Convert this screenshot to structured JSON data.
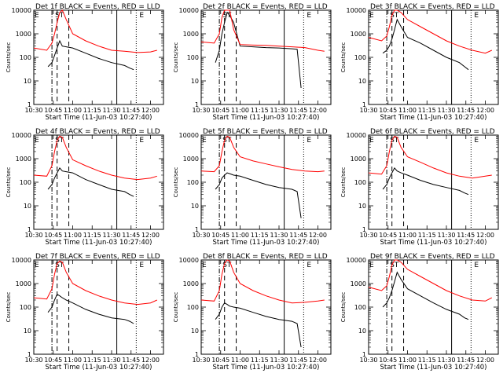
{
  "figure": {
    "start_time_label": "Start Time (11-Jun-03 10:27:40)",
    "y_axis_label": "Counts/sec",
    "x_ticks": [
      "10:30",
      "10:45",
      "11:00",
      "11:15",
      "11:30",
      "11:45",
      "12:00"
    ],
    "y_ticks": [
      "1",
      "10",
      "100",
      "1000",
      "10000"
    ],
    "interval_markers": [
      "S",
      "T",
      "E"
    ],
    "colors": {
      "events": "#000000",
      "lld": "#ff0000"
    }
  },
  "chart_data": [
    {
      "type": "line",
      "title": "Det 1f BLACK = Events, RED = LLD",
      "xlabel": "Start Time (11-Jun-03 10:27:40)",
      "ylabel": "Counts/sec",
      "x_time_range": [
        "10:30",
        "12:10"
      ],
      "ylim": [
        1,
        10000
      ],
      "y_scale": "log",
      "series": [
        {
          "name": "Events",
          "color": "#000000",
          "t": [
            "10:41",
            "10:44",
            "10:46",
            "10:48",
            "10:50",
            "10:52",
            "10:55",
            "11:00",
            "11:10",
            "11:20",
            "11:30",
            "11:40",
            "11:44",
            "11:47"
          ],
          "values": [
            40,
            60,
            120,
            250,
            500,
            300,
            280,
            250,
            150,
            90,
            60,
            45,
            35,
            30
          ]
        },
        {
          "name": "LLD",
          "color": "#ff0000",
          "t": [
            "10:30",
            "10:40",
            "10:44",
            "10:46",
            "10:48",
            "10:50",
            "10:52",
            "10:55",
            "11:00",
            "11:10",
            "11:20",
            "11:30",
            "11:40",
            "11:50",
            "12:00",
            "12:05"
          ],
          "values": [
            250,
            200,
            400,
            1000,
            3000,
            8000,
            10000,
            4000,
            1000,
            500,
            300,
            200,
            180,
            160,
            170,
            200
          ]
        }
      ],
      "markers": {
        "dash_dot": "10:44",
        "dashed_1": "10:48",
        "dashed_2": "10:57",
        "solid": "11:34",
        "dotted": "11:49"
      }
    },
    {
      "type": "line",
      "title": "Det 2f BLACK = Events, RED = LLD",
      "xlabel": "Start Time (11-Jun-03 10:27:40)",
      "ylabel": "Counts/sec",
      "x_time_range": [
        "10:30",
        "12:10"
      ],
      "ylim": [
        1,
        10000
      ],
      "y_scale": "log",
      "series": [
        {
          "name": "Events",
          "color": "#000000",
          "t": [
            "10:41",
            "10:44",
            "10:46",
            "10:48",
            "10:50",
            "10:52",
            "10:55",
            "11:00",
            "11:10",
            "11:20",
            "11:30",
            "11:40",
            "11:44",
            "11:47"
          ],
          "values": [
            60,
            200,
            1000,
            3000,
            8000,
            6000,
            3000,
            300,
            280,
            260,
            250,
            230,
            220,
            5
          ]
        },
        {
          "name": "LLD",
          "color": "#ff0000",
          "t": [
            "10:30",
            "10:40",
            "10:44",
            "10:46",
            "10:48",
            "10:50",
            "10:52",
            "10:55",
            "11:00",
            "11:10",
            "11:20",
            "11:30",
            "11:40",
            "11:50",
            "12:00",
            "12:05"
          ],
          "values": [
            450,
            400,
            1000,
            5000,
            10000,
            10000,
            10000,
            1500,
            350,
            330,
            320,
            300,
            280,
            260,
            200,
            180
          ]
        }
      ],
      "markers": {
        "dash_dot": "10:44",
        "dashed_1": "10:48",
        "dashed_2": "10:57",
        "solid": "11:34",
        "dotted": "11:49"
      }
    },
    {
      "type": "line",
      "title": "Det 3f BLACK = Events, RED = LLD",
      "xlabel": "Start Time (11-Jun-03 10:27:40)",
      "ylabel": "Counts/sec",
      "x_time_range": [
        "10:30",
        "12:10"
      ],
      "ylim": [
        1,
        10000
      ],
      "y_scale": "log",
      "series": [
        {
          "name": "Events",
          "color": "#000000",
          "t": [
            "10:41",
            "10:44",
            "10:46",
            "10:48",
            "10:50",
            "10:52",
            "10:55",
            "11:00",
            "11:10",
            "11:20",
            "11:30",
            "11:40",
            "11:44",
            "11:47"
          ],
          "values": [
            150,
            200,
            300,
            600,
            1500,
            4000,
            2000,
            700,
            400,
            200,
            100,
            60,
            40,
            30
          ]
        },
        {
          "name": "LLD",
          "color": "#ff0000",
          "t": [
            "10:30",
            "10:40",
            "10:44",
            "10:46",
            "10:48",
            "10:50",
            "10:52",
            "10:55",
            "11:00",
            "11:10",
            "11:20",
            "11:30",
            "11:40",
            "11:50",
            "12:00",
            "12:05"
          ],
          "values": [
            700,
            500,
            800,
            2000,
            6000,
            10000,
            10000,
            8000,
            4000,
            2000,
            1000,
            500,
            300,
            200,
            150,
            200
          ]
        }
      ],
      "markers": {
        "dash_dot": "10:44",
        "dashed_1": "10:48",
        "dashed_2": "10:57",
        "solid": "11:34",
        "dotted": "11:49"
      }
    },
    {
      "type": "line",
      "title": "Det 4f BLACK = Events, RED = LLD",
      "xlabel": "Start Time (11-Jun-03 10:27:40)",
      "ylabel": "Counts/sec",
      "x_time_range": [
        "10:30",
        "12:10"
      ],
      "ylim": [
        1,
        10000
      ],
      "y_scale": "log",
      "series": [
        {
          "name": "Events",
          "color": "#000000",
          "t": [
            "10:41",
            "10:44",
            "10:46",
            "10:48",
            "10:50",
            "10:52",
            "10:55",
            "11:00",
            "11:10",
            "11:20",
            "11:30",
            "11:40",
            "11:44",
            "11:47"
          ],
          "values": [
            50,
            80,
            150,
            250,
            400,
            300,
            280,
            250,
            130,
            80,
            50,
            40,
            30,
            25
          ]
        },
        {
          "name": "LLD",
          "color": "#ff0000",
          "t": [
            "10:30",
            "10:40",
            "10:44",
            "10:46",
            "10:48",
            "10:50",
            "10:52",
            "10:55",
            "11:00",
            "11:10",
            "11:20",
            "11:30",
            "11:40",
            "11:50",
            "12:00",
            "12:05"
          ],
          "values": [
            200,
            180,
            500,
            2000,
            6000,
            9000,
            8000,
            3000,
            900,
            500,
            300,
            200,
            150,
            130,
            150,
            180
          ]
        }
      ],
      "markers": {
        "dash_dot": "10:44",
        "dashed_1": "10:48",
        "dashed_2": "10:57",
        "solid": "11:34",
        "dotted": "11:49"
      }
    },
    {
      "type": "line",
      "title": "Det 5f BLACK = Events, RED = LLD",
      "xlabel": "Start Time (11-Jun-03 10:27:40)",
      "ylabel": "Counts/sec",
      "x_time_range": [
        "10:30",
        "12:10"
      ],
      "ylim": [
        1,
        10000
      ],
      "y_scale": "log",
      "series": [
        {
          "name": "Events",
          "color": "#000000",
          "t": [
            "10:41",
            "10:44",
            "10:46",
            "10:48",
            "10:50",
            "10:52",
            "10:55",
            "11:00",
            "11:10",
            "11:20",
            "11:30",
            "11:40",
            "11:44",
            "11:47"
          ],
          "values": [
            50,
            80,
            150,
            200,
            250,
            230,
            200,
            180,
            120,
            80,
            60,
            50,
            40,
            3
          ]
        },
        {
          "name": "LLD",
          "color": "#ff0000",
          "t": [
            "10:30",
            "10:40",
            "10:44",
            "10:46",
            "10:48",
            "10:50",
            "10:52",
            "10:55",
            "11:00",
            "11:10",
            "11:20",
            "11:30",
            "11:40",
            "11:50",
            "12:00",
            "12:05"
          ],
          "values": [
            300,
            280,
            500,
            2000,
            6000,
            9000,
            8000,
            3000,
            1200,
            800,
            600,
            450,
            350,
            300,
            280,
            300
          ]
        }
      ],
      "markers": {
        "dash_dot": "10:44",
        "dashed_1": "10:48",
        "dashed_2": "10:57",
        "solid": "11:34",
        "dotted": "11:49"
      }
    },
    {
      "type": "line",
      "title": "Det 6f BLACK = Events, RED = LLD",
      "xlabel": "Start Time (11-Jun-03 10:27:40)",
      "ylabel": "Counts/sec",
      "x_time_range": [
        "10:30",
        "12:10"
      ],
      "ylim": [
        1,
        10000
      ],
      "y_scale": "log",
      "series": [
        {
          "name": "Events",
          "color": "#000000",
          "t": [
            "10:41",
            "10:44",
            "10:46",
            "10:48",
            "10:50",
            "10:52",
            "10:55",
            "11:00",
            "11:10",
            "11:20",
            "11:30",
            "11:40",
            "11:44",
            "11:47"
          ],
          "values": [
            50,
            80,
            150,
            250,
            400,
            300,
            250,
            200,
            120,
            80,
            60,
            45,
            35,
            30
          ]
        },
        {
          "name": "LLD",
          "color": "#ff0000",
          "t": [
            "10:30",
            "10:40",
            "10:44",
            "10:46",
            "10:48",
            "10:50",
            "10:52",
            "10:55",
            "11:00",
            "11:10",
            "11:20",
            "11:30",
            "11:40",
            "11:50",
            "12:00",
            "12:05"
          ],
          "values": [
            250,
            220,
            500,
            2000,
            6000,
            9000,
            8000,
            3000,
            1200,
            700,
            400,
            250,
            180,
            150,
            180,
            200
          ]
        }
      ],
      "markers": {
        "dash_dot": "10:44",
        "dashed_1": "10:48",
        "dashed_2": "10:57",
        "solid": "11:34",
        "dotted": "11:49"
      }
    },
    {
      "type": "line",
      "title": "Det 7f BLACK = Events, RED = LLD",
      "xlabel": "Start Time (11-Jun-03 10:27:40)",
      "ylabel": "Counts/sec",
      "x_time_range": [
        "10:30",
        "12:10"
      ],
      "ylim": [
        1,
        10000
      ],
      "y_scale": "log",
      "series": [
        {
          "name": "Events",
          "color": "#000000",
          "t": [
            "10:41",
            "10:44",
            "10:46",
            "10:48",
            "10:50",
            "10:52",
            "10:55",
            "11:00",
            "11:10",
            "11:20",
            "11:30",
            "11:40",
            "11:44",
            "11:47"
          ],
          "values": [
            60,
            100,
            200,
            350,
            300,
            250,
            200,
            150,
            80,
            50,
            35,
            30,
            25,
            20
          ]
        },
        {
          "name": "LLD",
          "color": "#ff0000",
          "t": [
            "10:30",
            "10:40",
            "10:44",
            "10:46",
            "10:48",
            "10:50",
            "10:52",
            "10:55",
            "11:00",
            "11:10",
            "11:20",
            "11:30",
            "11:40",
            "11:50",
            "12:00",
            "12:05"
          ],
          "values": [
            250,
            220,
            600,
            2500,
            7000,
            9000,
            8000,
            3000,
            1000,
            500,
            300,
            200,
            150,
            130,
            150,
            200
          ]
        }
      ],
      "markers": {
        "dash_dot": "10:44",
        "dashed_1": "10:48",
        "dashed_2": "10:57",
        "solid": "11:34",
        "dotted": "11:49"
      }
    },
    {
      "type": "line",
      "title": "Det 8f BLACK = Events, RED = LLD",
      "xlabel": "Start Time (11-Jun-03 10:27:40)",
      "ylabel": "Counts/sec",
      "x_time_range": [
        "10:30",
        "12:10"
      ],
      "ylim": [
        1,
        10000
      ],
      "y_scale": "log",
      "series": [
        {
          "name": "Events",
          "color": "#000000",
          "t": [
            "10:41",
            "10:44",
            "10:46",
            "10:48",
            "10:50",
            "10:52",
            "10:55",
            "11:00",
            "11:10",
            "11:20",
            "11:30",
            "11:40",
            "11:44",
            "11:47"
          ],
          "values": [
            30,
            50,
            100,
            150,
            130,
            110,
            100,
            90,
            60,
            40,
            30,
            25,
            20,
            2
          ]
        },
        {
          "name": "LLD",
          "color": "#ff0000",
          "t": [
            "10:30",
            "10:40",
            "10:44",
            "10:46",
            "10:48",
            "10:50",
            "10:52",
            "10:55",
            "11:00",
            "11:10",
            "11:20",
            "11:30",
            "11:40",
            "11:50",
            "12:00",
            "12:05"
          ],
          "values": [
            200,
            180,
            500,
            2500,
            7000,
            10000,
            9000,
            3000,
            1000,
            500,
            300,
            200,
            150,
            160,
            180,
            200
          ]
        }
      ],
      "markers": {
        "dash_dot": "10:44",
        "dashed_1": "10:48",
        "dashed_2": "10:57",
        "solid": "11:34",
        "dotted": "11:49"
      }
    },
    {
      "type": "line",
      "title": "Det 9f BLACK = Events, RED = LLD",
      "xlabel": "Start Time (11-Jun-03 10:27:40)",
      "ylabel": "Counts/sec",
      "x_time_range": [
        "10:30",
        "12:10"
      ],
      "ylim": [
        1,
        10000
      ],
      "y_scale": "log",
      "series": [
        {
          "name": "Events",
          "color": "#000000",
          "t": [
            "10:41",
            "10:44",
            "10:46",
            "10:48",
            "10:50",
            "10:52",
            "10:55",
            "11:00",
            "11:10",
            "11:20",
            "11:30",
            "11:40",
            "11:44",
            "11:47"
          ],
          "values": [
            100,
            150,
            250,
            500,
            1200,
            3000,
            1500,
            600,
            300,
            150,
            80,
            50,
            35,
            30
          ]
        },
        {
          "name": "LLD",
          "color": "#ff0000",
          "t": [
            "10:30",
            "10:40",
            "10:44",
            "10:46",
            "10:48",
            "10:50",
            "10:52",
            "10:55",
            "11:00",
            "11:10",
            "11:20",
            "11:30",
            "11:40",
            "11:50",
            "12:00",
            "12:05"
          ],
          "values": [
            700,
            500,
            800,
            2000,
            6000,
            10000,
            10000,
            8000,
            4000,
            2000,
            1000,
            500,
            300,
            200,
            180,
            250
          ]
        }
      ],
      "markers": {
        "dash_dot": "10:44",
        "dashed_1": "10:48",
        "dashed_2": "10:57",
        "solid": "11:34",
        "dotted": "11:49"
      }
    }
  ]
}
